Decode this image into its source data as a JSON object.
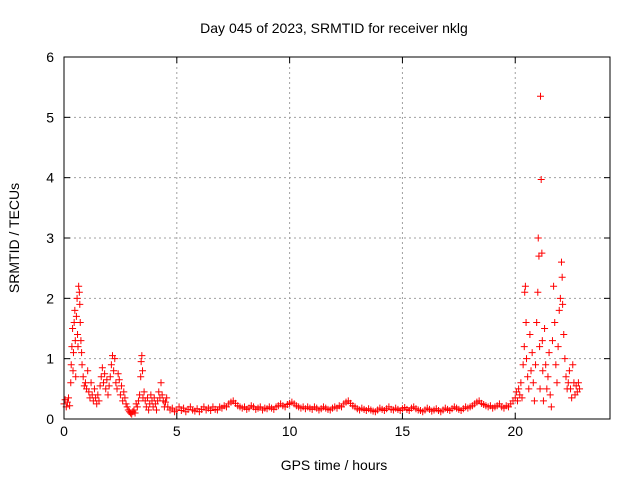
{
  "chart_data": {
    "type": "scatter",
    "title": "Day 045 of 2023, SRMTID for receiver nklg",
    "xlabel": "GPS time / hours",
    "ylabel": "SRMTID / TECUs",
    "xlim": [
      0,
      24.2
    ],
    "ylim": [
      0,
      6
    ],
    "xticks": [
      0,
      5,
      10,
      15,
      20
    ],
    "xtick_labels": [
      "0",
      "5",
      "10",
      "15",
      "20"
    ],
    "yticks": [
      0,
      1,
      2,
      3,
      4,
      5,
      6
    ],
    "ytick_labels": [
      "0",
      "1",
      "2",
      "3",
      "4",
      "5",
      "6"
    ],
    "grid": true,
    "marker": "+",
    "series": [
      {
        "name": "SRMTID",
        "color": "#ff0000",
        "points": [
          [
            0.0,
            0.25
          ],
          [
            0.05,
            0.32
          ],
          [
            0.1,
            0.2
          ],
          [
            0.15,
            0.28
          ],
          [
            0.2,
            0.35
          ],
          [
            0.25,
            0.22
          ],
          [
            0.3,
            0.6
          ],
          [
            0.32,
            0.9
          ],
          [
            0.35,
            1.2
          ],
          [
            0.38,
            1.5
          ],
          [
            0.4,
            0.8
          ],
          [
            0.42,
            1.1
          ],
          [
            0.45,
            1.6
          ],
          [
            0.48,
            1.8
          ],
          [
            0.5,
            1.3
          ],
          [
            0.52,
            0.7
          ],
          [
            0.55,
            1.7
          ],
          [
            0.58,
            2.0
          ],
          [
            0.6,
            1.4
          ],
          [
            0.62,
            1.2
          ],
          [
            0.65,
            2.2
          ],
          [
            0.68,
            2.1
          ],
          [
            0.7,
            1.9
          ],
          [
            0.72,
            1.6
          ],
          [
            0.75,
            1.3
          ],
          [
            0.78,
            1.1
          ],
          [
            0.8,
            0.9
          ],
          [
            0.85,
            0.7
          ],
          [
            0.9,
            0.55
          ],
          [
            0.95,
            0.6
          ],
          [
            1.0,
            0.5
          ],
          [
            1.05,
            0.8
          ],
          [
            1.1,
            0.45
          ],
          [
            1.15,
            0.35
          ],
          [
            1.2,
            0.6
          ],
          [
            1.25,
            0.4
          ],
          [
            1.3,
            0.3
          ],
          [
            1.35,
            0.5
          ],
          [
            1.4,
            0.35
          ],
          [
            1.45,
            0.25
          ],
          [
            1.5,
            0.4
          ],
          [
            1.55,
            0.3
          ],
          [
            1.6,
            0.55
          ],
          [
            1.65,
            0.7
          ],
          [
            1.7,
            0.85
          ],
          [
            1.75,
            0.6
          ],
          [
            1.8,
            0.75
          ],
          [
            1.85,
            0.5
          ],
          [
            1.9,
            0.65
          ],
          [
            1.95,
            0.4
          ],
          [
            2.0,
            0.55
          ],
          [
            2.05,
            0.7
          ],
          [
            2.1,
            0.9
          ],
          [
            2.15,
            1.05
          ],
          [
            2.2,
            0.8
          ],
          [
            2.25,
            1.0
          ],
          [
            2.3,
            0.6
          ],
          [
            2.35,
            0.5
          ],
          [
            2.4,
            0.75
          ],
          [
            2.45,
            0.65
          ],
          [
            2.5,
            0.4
          ],
          [
            2.55,
            0.55
          ],
          [
            2.6,
            0.3
          ],
          [
            2.65,
            0.45
          ],
          [
            2.7,
            0.35
          ],
          [
            2.75,
            0.25
          ],
          [
            2.8,
            0.2
          ],
          [
            2.85,
            0.15
          ],
          [
            2.9,
            0.12
          ],
          [
            2.95,
            0.1
          ],
          [
            3.0,
            0.08
          ],
          [
            3.05,
            0.12
          ],
          [
            3.1,
            0.15
          ],
          [
            3.15,
            0.1
          ],
          [
            3.2,
            0.25
          ],
          [
            3.25,
            0.2
          ],
          [
            3.3,
            0.3
          ],
          [
            3.35,
            0.4
          ],
          [
            3.4,
            0.7
          ],
          [
            3.42,
            0.95
          ],
          [
            3.45,
            1.05
          ],
          [
            3.48,
            0.8
          ],
          [
            3.5,
            0.35
          ],
          [
            3.55,
            0.45
          ],
          [
            3.6,
            0.3
          ],
          [
            3.65,
            0.2
          ],
          [
            3.7,
            0.35
          ],
          [
            3.75,
            0.15
          ],
          [
            3.8,
            0.25
          ],
          [
            3.85,
            0.4
          ],
          [
            3.9,
            0.3
          ],
          [
            3.95,
            0.2
          ],
          [
            4.0,
            0.35
          ],
          [
            4.05,
            0.25
          ],
          [
            4.1,
            0.15
          ],
          [
            4.15,
            0.3
          ],
          [
            4.2,
            0.45
          ],
          [
            4.25,
            0.35
          ],
          [
            4.3,
            0.6
          ],
          [
            4.35,
            0.4
          ],
          [
            4.4,
            0.3
          ],
          [
            4.45,
            0.2
          ],
          [
            4.5,
            0.28
          ],
          [
            4.55,
            0.35
          ],
          [
            4.6,
            0.2
          ],
          [
            4.7,
            0.15
          ],
          [
            4.8,
            0.18
          ],
          [
            4.9,
            0.12
          ],
          [
            5.0,
            0.15
          ],
          [
            5.1,
            0.2
          ],
          [
            5.2,
            0.14
          ],
          [
            5.3,
            0.18
          ],
          [
            5.4,
            0.12
          ],
          [
            5.5,
            0.16
          ],
          [
            5.6,
            0.2
          ],
          [
            5.7,
            0.15
          ],
          [
            5.8,
            0.13
          ],
          [
            5.9,
            0.17
          ],
          [
            6.0,
            0.12
          ],
          [
            6.1,
            0.16
          ],
          [
            6.2,
            0.2
          ],
          [
            6.3,
            0.15
          ],
          [
            6.4,
            0.18
          ],
          [
            6.5,
            0.14
          ],
          [
            6.6,
            0.2
          ],
          [
            6.7,
            0.16
          ],
          [
            6.8,
            0.15
          ],
          [
            6.9,
            0.2
          ],
          [
            7.0,
            0.18
          ],
          [
            7.1,
            0.22
          ],
          [
            7.2,
            0.2
          ],
          [
            7.3,
            0.25
          ],
          [
            7.4,
            0.28
          ],
          [
            7.5,
            0.3
          ],
          [
            7.6,
            0.26
          ],
          [
            7.7,
            0.22
          ],
          [
            7.8,
            0.2
          ],
          [
            7.9,
            0.18
          ],
          [
            8.0,
            0.2
          ],
          [
            8.1,
            0.16
          ],
          [
            8.2,
            0.18
          ],
          [
            8.3,
            0.22
          ],
          [
            8.4,
            0.2
          ],
          [
            8.5,
            0.16
          ],
          [
            8.6,
            0.18
          ],
          [
            8.7,
            0.2
          ],
          [
            8.8,
            0.15
          ],
          [
            8.9,
            0.18
          ],
          [
            9.0,
            0.17
          ],
          [
            9.1,
            0.2
          ],
          [
            9.2,
            0.18
          ],
          [
            9.3,
            0.16
          ],
          [
            9.4,
            0.2
          ],
          [
            9.5,
            0.22
          ],
          [
            9.6,
            0.25
          ],
          [
            9.7,
            0.22
          ],
          [
            9.8,
            0.2
          ],
          [
            9.9,
            0.24
          ],
          [
            10.0,
            0.26
          ],
          [
            10.1,
            0.28
          ],
          [
            10.2,
            0.25
          ],
          [
            10.3,
            0.22
          ],
          [
            10.4,
            0.2
          ],
          [
            10.5,
            0.18
          ],
          [
            10.6,
            0.2
          ],
          [
            10.7,
            0.17
          ],
          [
            10.8,
            0.2
          ],
          [
            10.9,
            0.18
          ],
          [
            11.0,
            0.16
          ],
          [
            11.1,
            0.2
          ],
          [
            11.2,
            0.18
          ],
          [
            11.3,
            0.15
          ],
          [
            11.4,
            0.17
          ],
          [
            11.5,
            0.2
          ],
          [
            11.6,
            0.18
          ],
          [
            11.7,
            0.16
          ],
          [
            11.8,
            0.15
          ],
          [
            11.9,
            0.18
          ],
          [
            12.0,
            0.2
          ],
          [
            12.1,
            0.18
          ],
          [
            12.2,
            0.22
          ],
          [
            12.3,
            0.2
          ],
          [
            12.4,
            0.25
          ],
          [
            12.5,
            0.28
          ],
          [
            12.6,
            0.3
          ],
          [
            12.7,
            0.26
          ],
          [
            12.8,
            0.22
          ],
          [
            12.9,
            0.2
          ],
          [
            13.0,
            0.17
          ],
          [
            13.1,
            0.15
          ],
          [
            13.2,
            0.18
          ],
          [
            13.3,
            0.16
          ],
          [
            13.4,
            0.14
          ],
          [
            13.5,
            0.17
          ],
          [
            13.6,
            0.15
          ],
          [
            13.7,
            0.13
          ],
          [
            13.8,
            0.12
          ],
          [
            13.9,
            0.15
          ],
          [
            14.0,
            0.18
          ],
          [
            14.1,
            0.16
          ],
          [
            14.2,
            0.14
          ],
          [
            14.3,
            0.17
          ],
          [
            14.4,
            0.2
          ],
          [
            14.5,
            0.16
          ],
          [
            14.6,
            0.15
          ],
          [
            14.7,
            0.18
          ],
          [
            14.8,
            0.16
          ],
          [
            14.9,
            0.14
          ],
          [
            15.0,
            0.17
          ],
          [
            15.1,
            0.19
          ],
          [
            15.2,
            0.16
          ],
          [
            15.3,
            0.14
          ],
          [
            15.4,
            0.18
          ],
          [
            15.5,
            0.2
          ],
          [
            15.6,
            0.17
          ],
          [
            15.7,
            0.15
          ],
          [
            15.8,
            0.14
          ],
          [
            15.9,
            0.12
          ],
          [
            16.0,
            0.15
          ],
          [
            16.1,
            0.18
          ],
          [
            16.2,
            0.16
          ],
          [
            16.3,
            0.13
          ],
          [
            16.4,
            0.15
          ],
          [
            16.5,
            0.17
          ],
          [
            16.6,
            0.14
          ],
          [
            16.7,
            0.12
          ],
          [
            16.8,
            0.15
          ],
          [
            16.9,
            0.18
          ],
          [
            17.0,
            0.16
          ],
          [
            17.1,
            0.14
          ],
          [
            17.2,
            0.17
          ],
          [
            17.3,
            0.2
          ],
          [
            17.4,
            0.18
          ],
          [
            17.5,
            0.16
          ],
          [
            17.6,
            0.14
          ],
          [
            17.7,
            0.17
          ],
          [
            17.8,
            0.2
          ],
          [
            17.9,
            0.18
          ],
          [
            18.0,
            0.2
          ],
          [
            18.1,
            0.22
          ],
          [
            18.2,
            0.25
          ],
          [
            18.3,
            0.28
          ],
          [
            18.4,
            0.3
          ],
          [
            18.5,
            0.26
          ],
          [
            18.6,
            0.24
          ],
          [
            18.7,
            0.22
          ],
          [
            18.8,
            0.2
          ],
          [
            18.9,
            0.22
          ],
          [
            19.0,
            0.18
          ],
          [
            19.1,
            0.2
          ],
          [
            19.2,
            0.22
          ],
          [
            19.3,
            0.25
          ],
          [
            19.4,
            0.2
          ],
          [
            19.5,
            0.18
          ],
          [
            19.6,
            0.22
          ],
          [
            19.7,
            0.2
          ],
          [
            19.8,
            0.25
          ],
          [
            19.9,
            0.3
          ],
          [
            20.0,
            0.35
          ],
          [
            20.05,
            0.45
          ],
          [
            20.1,
            0.3
          ],
          [
            20.15,
            0.5
          ],
          [
            20.2,
            0.4
          ],
          [
            20.25,
            0.6
          ],
          [
            20.3,
            0.35
          ],
          [
            20.35,
            0.9
          ],
          [
            20.4,
            1.2
          ],
          [
            20.42,
            2.1
          ],
          [
            20.45,
            2.2
          ],
          [
            20.48,
            1.6
          ],
          [
            20.5,
            1.0
          ],
          [
            20.55,
            0.7
          ],
          [
            20.6,
            0.5
          ],
          [
            20.65,
            1.4
          ],
          [
            20.7,
            0.8
          ],
          [
            20.75,
            1.1
          ],
          [
            20.8,
            0.6
          ],
          [
            20.85,
            0.3
          ],
          [
            20.9,
            0.9
          ],
          [
            20.95,
            1.6
          ],
          [
            21.0,
            2.1
          ],
          [
            21.02,
            3.0
          ],
          [
            21.05,
            2.7
          ],
          [
            21.08,
            1.2
          ],
          [
            21.1,
            0.5
          ],
          [
            21.12,
            5.35
          ],
          [
            21.15,
            3.97
          ],
          [
            21.18,
            2.75
          ],
          [
            21.2,
            1.3
          ],
          [
            21.22,
            0.8
          ],
          [
            21.25,
            0.3
          ],
          [
            21.3,
            1.5
          ],
          [
            21.35,
            0.9
          ],
          [
            21.4,
            0.5
          ],
          [
            21.45,
            0.7
          ],
          [
            21.5,
            1.1
          ],
          [
            21.55,
            0.4
          ],
          [
            21.6,
            0.2
          ],
          [
            21.65,
            1.3
          ],
          [
            21.7,
            2.2
          ],
          [
            21.75,
            1.6
          ],
          [
            21.8,
            0.9
          ],
          [
            21.85,
            0.6
          ],
          [
            21.9,
            1.2
          ],
          [
            21.95,
            1.8
          ],
          [
            22.0,
            2.0
          ],
          [
            22.05,
            2.6
          ],
          [
            22.08,
            2.35
          ],
          [
            22.1,
            1.9
          ],
          [
            22.15,
            1.4
          ],
          [
            22.2,
            1.0
          ],
          [
            22.25,
            0.7
          ],
          [
            22.3,
            0.5
          ],
          [
            22.35,
            0.6
          ],
          [
            22.4,
            0.8
          ],
          [
            22.45,
            0.5
          ],
          [
            22.5,
            0.35
          ],
          [
            22.55,
            0.9
          ],
          [
            22.6,
            0.6
          ],
          [
            22.65,
            0.4
          ],
          [
            22.7,
            0.55
          ],
          [
            22.75,
            0.45
          ],
          [
            22.8,
            0.6
          ],
          [
            22.85,
            0.5
          ]
        ]
      }
    ]
  }
}
